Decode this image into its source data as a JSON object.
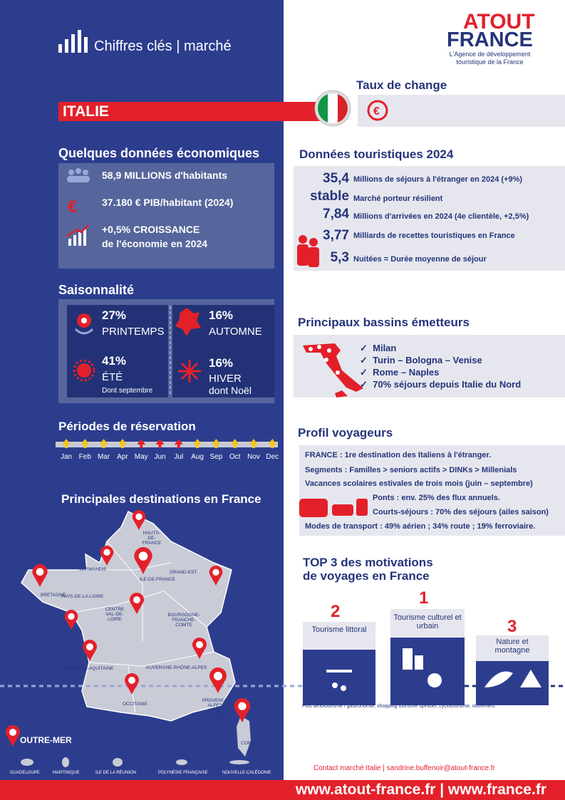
{
  "header": {
    "title": "Chiffres clés | marché",
    "logo_line1": "ATOUT",
    "logo_line2": "FRANCE",
    "logo_tagline": "L'Agence de développement touristique de la France"
  },
  "country": "ITALIE",
  "exchange": {
    "title": "Taux de change"
  },
  "economy": {
    "title": "Quelques données économiques",
    "population": "58,9 MILLIONS d'habitants",
    "gdp": "37.180 € PIB/habitant (2024)",
    "growth_1": "+0,5% CROISSANCE",
    "growth_2": "de l'économie en 2024"
  },
  "seasonality": {
    "title": "Saisonnalité",
    "items": [
      {
        "value": "27%",
        "label": "PRINTEMPS"
      },
      {
        "value": "16%",
        "label": "AUTOMNE"
      },
      {
        "value": "41%",
        "label": "ÉTÉ",
        "note": "Dont septembre"
      },
      {
        "value": "16%",
        "label": "HIVER",
        "note": "dont Noël"
      }
    ]
  },
  "booking": {
    "title": "Périodes de réservation",
    "months": [
      "Jan",
      "Feb",
      "Mar",
      "Apr",
      "May",
      "Jun",
      "Jul",
      "Aug",
      "Sep",
      "Oct",
      "Nov",
      "Dec"
    ],
    "arrow_colors": [
      "#f5c518",
      "#f5c518",
      "#f5c518",
      "#f5c518",
      "#e3202a",
      "#e3202a",
      "#e3202a",
      "#f5c518",
      "#f5c518",
      "#f5c518",
      "#f5c518",
      "#f5c518"
    ]
  },
  "destinations": {
    "title": "Principales destinations en France",
    "regions": [
      "HAUTS-DE-FRANCE",
      "NORMANDIE",
      "ILE-DE-FRANCE",
      "GRAND-EST",
      "BRETAGNE",
      "PAYS-DE-LA-LOIRE",
      "CENTRE VAL-DE-LOIRE",
      "BOURGOGNE-FRANCHE-COMTE",
      "NOUVELLE-AQUITAINE",
      "AUVERGNE-RHÔNE-ALPES",
      "OCCITANIE",
      "PROVENCE ALPES CÔTE-D'AZUR",
      "CORSE"
    ],
    "overseas_title": "OUTRE-MER",
    "overseas": [
      "GUADELOUPE",
      "MARTINIQUE",
      "ILE DE LA RÉUNION",
      "POLYNÉSIE FRANÇAISE",
      "NOUVELLE-CALÉDONIE"
    ]
  },
  "tourism": {
    "title": "Données touristiques 2024",
    "rows": [
      {
        "value": "35,4",
        "text": "Millions de séjours à l'étranger en 2024 (+9%)"
      },
      {
        "value": "stable",
        "text": "Marché porteur résilient"
      },
      {
        "value": "7,84",
        "text": "Millions d'arrivées en 2024 (4e clientèle, +2,5%)"
      },
      {
        "value": "3,77",
        "text": "Milliards de recettes touristiques en France"
      },
      {
        "value": "5,3",
        "text": "Nuitées = Durée moyenne de séjour"
      }
    ]
  },
  "markets": {
    "title": "Principaux bassins émetteurs",
    "items": [
      "Milan",
      "Turin – Bologna – Venise",
      "Rome – Naples",
      "70% séjours depuis Italie du Nord"
    ]
  },
  "profile": {
    "title": "Profil voyageurs",
    "lines": [
      "FRANCE : 1re destination des Italiens à l'étranger.",
      "Segments : Familles > seniors actifs > DINKs > Millenials",
      "Vacances scolaires estivales de trois mois (juin – septembre)",
      "Ponts : env. 25% des flux annuels.",
      "Courts-séjours : 70% des séjours (ailes saison)",
      "Modes de transport : 49% aérien ; 34% route ; 19% ferroviaire."
    ]
  },
  "motivations": {
    "title_1": "TOP 3 des motivations",
    "title_2": "de voyages en France",
    "items": [
      {
        "rank": "2",
        "label": "Tourisme littoral"
      },
      {
        "rank": "1",
        "label": "Tourisme culturel et urbain"
      },
      {
        "rank": "3",
        "label": "Nature et montagne"
      }
    ],
    "note": "Puis œnotourisme / gastronomie, shopping tourisme spirituel, cyclotourisme, outremers"
  },
  "contact": "Contact marché Italie | sandrine.buffenoir@atout-france.fr",
  "footer": "www.atout-france.fr | www.france.fr"
}
